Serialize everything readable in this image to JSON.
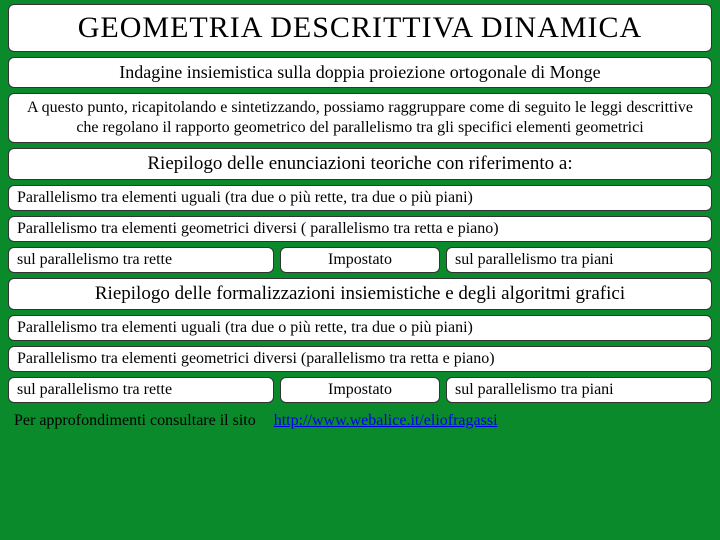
{
  "colors": {
    "background": "#0a8a2a",
    "box_bg": "#ffffff",
    "box_border": "#333333",
    "text": "#000000",
    "link": "#0000ee"
  },
  "fonts": {
    "family": "Georgia, Times New Roman, serif",
    "title_size": 30,
    "subtitle_size": 18,
    "section_size": 19,
    "body_size": 16
  },
  "title": "GEOMETRIA  DESCRITTIVA  DINAMICA",
  "subtitle": "Indagine insiemistica sulla doppia proiezione ortogonale di Monge",
  "intro": "A questo punto, ricapitolando e sintetizzando, possiamo raggruppare come di seguito le leggi descrittive che regolano il rapporto  geometrico del parallelismo tra gli specifici elementi geometrici",
  "section1": {
    "heading": "Riepilogo delle enunciazioni teoriche  con riferimento a:",
    "item1": "Parallelismo tra elementi uguali (tra due o più rette, tra due o più piani)",
    "item2": "Parallelismo tra elementi geometrici diversi ( parallelismo tra retta e piano)",
    "row": {
      "left": "sul parallelismo tra rette",
      "center": "Impostato",
      "right": "sul parallelismo tra piani"
    }
  },
  "section2": {
    "heading": "Riepilogo delle formalizzazioni insiemistiche e degli algoritmi grafici",
    "item1": "Parallelismo tra elementi uguali (tra due o più rette, tra due o più piani)",
    "item2": "Parallelismo tra elementi geometrici diversi (parallelismo tra retta e piano)",
    "row": {
      "left": "sul parallelismo tra rette",
      "center": "Impostato",
      "right": "sul parallelismo tra piani"
    }
  },
  "footer": {
    "label": "Per approfondimenti consultare il sito",
    "url": "http://www.webalice.it/eliofragassi"
  }
}
